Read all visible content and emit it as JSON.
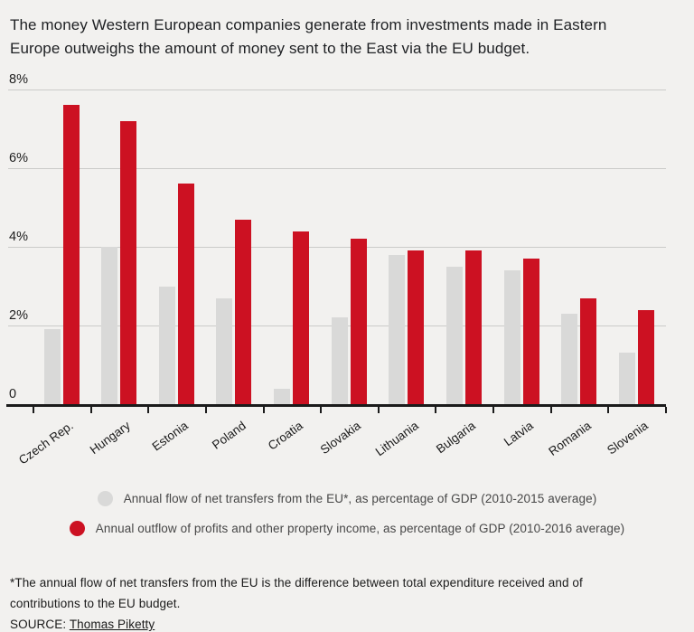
{
  "page": {
    "background": "#f2f1ef"
  },
  "header": {
    "title": "The money Western European companies generate from investments made in Eastern Europe outweighs the amount of money sent to the East via the EU budget."
  },
  "chart_data": {
    "type": "bar",
    "title": "",
    "categories": [
      "Czech Rep.",
      "Hungary",
      "Estonia",
      "Poland",
      "Croatia",
      "Slovakia",
      "Lithuania",
      "Bulgaria",
      "Latvia",
      "Romania",
      "Slovenia"
    ],
    "series": [
      {
        "name": "Annual flow of net transfers from the EU*, as percentage of GDP (2010-2015 average)",
        "color": "#d9d9d8",
        "values": [
          1.9,
          4.0,
          3.0,
          2.7,
          0.4,
          2.2,
          3.8,
          3.5,
          3.4,
          2.3,
          1.3
        ]
      },
      {
        "name": "Annual outflow of profits and other property income, as percentage of GDP (2010-2016 average)",
        "color": "#cc1122",
        "values": [
          7.6,
          7.2,
          5.6,
          4.7,
          4.4,
          4.2,
          3.9,
          3.9,
          3.7,
          2.7,
          2.4
        ]
      }
    ],
    "xlabel": "",
    "ylabel": "",
    "ylim": [
      0,
      8
    ],
    "yticks": [
      {
        "v": 0,
        "label": "0"
      },
      {
        "v": 2,
        "label": "2%"
      },
      {
        "v": 4,
        "label": "4%"
      },
      {
        "v": 6,
        "label": "6%"
      },
      {
        "v": 8,
        "label": "8%"
      }
    ],
    "grid": true,
    "legend_position": "bottom"
  },
  "footer": {
    "footnote": "*The annual flow of net transfers from the EU is the difference between total expenditure received and of contributions to the EU budget.",
    "source_label": "SOURCE:",
    "source_link": "Thomas Piketty"
  }
}
